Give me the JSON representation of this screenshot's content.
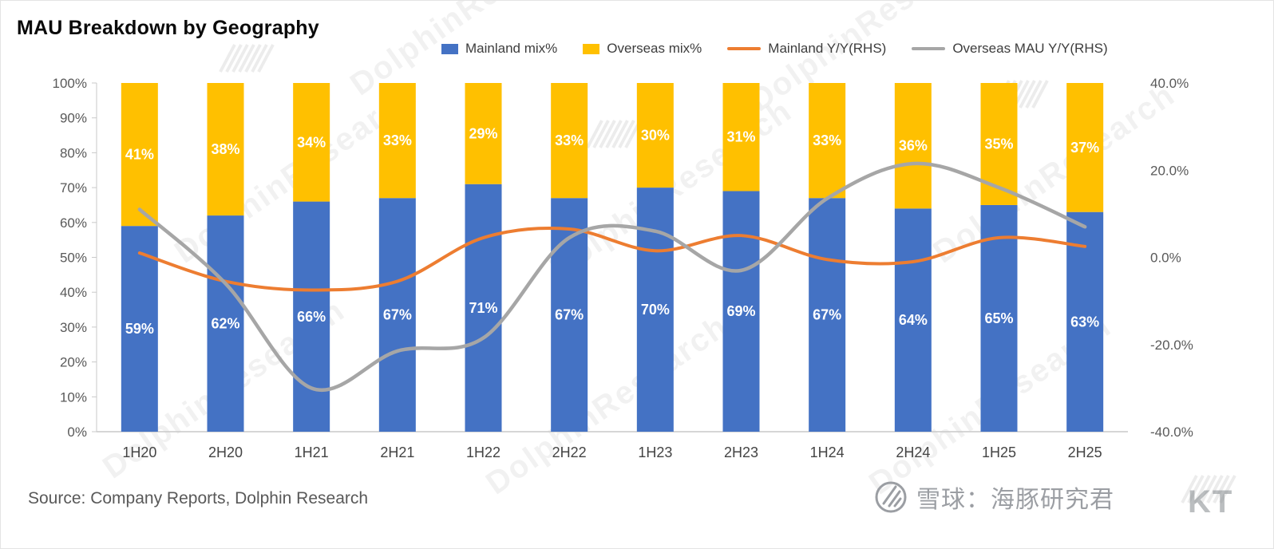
{
  "title": "MAU Breakdown by Geography",
  "source": "Source: Company Reports, Dolphin Research",
  "watermark": {
    "text": "DolphinResearch",
    "brand": "雪球：海豚研究君",
    "partial": "KT"
  },
  "colors": {
    "mainland": "#4472C4",
    "overseas": "#FFC000",
    "mainland_yy": "#ED7D31",
    "overseas_yy": "#A6A6A6",
    "axis_text": "#595959"
  },
  "legend": [
    {
      "label": "Mainland mix%",
      "swatch": "square",
      "color": "#4472C4"
    },
    {
      "label": "Overseas mix%",
      "swatch": "square",
      "color": "#FFC000"
    },
    {
      "label": "Mainland Y/Y(RHS)",
      "swatch": "line",
      "color": "#ED7D31"
    },
    {
      "label": "Overseas MAU Y/Y(RHS)",
      "swatch": "line",
      "color": "#A6A6A6"
    }
  ],
  "chart_data": {
    "type": "bar",
    "subtype": "stacked-100-percent-with-lines",
    "title": "MAU Breakdown by Geography",
    "categories": [
      "1H20",
      "2H20",
      "1H21",
      "2H21",
      "1H22",
      "2H22",
      "1H23",
      "2H23",
      "1H24",
      "2H24",
      "1H25",
      "2H25"
    ],
    "series": [
      {
        "name": "Mainland mix%",
        "type": "bar",
        "axis": "left",
        "color": "#4472C4",
        "values": [
          59,
          62,
          66,
          67,
          71,
          67,
          70,
          69,
          67,
          64,
          65,
          63
        ],
        "labels": [
          "59%",
          "62%",
          "66%",
          "67%",
          "71%",
          "67%",
          "70%",
          "69%",
          "67%",
          "64%",
          "65%",
          "63%"
        ]
      },
      {
        "name": "Overseas mix%",
        "type": "bar",
        "axis": "left",
        "color": "#FFC000",
        "values": [
          41,
          38,
          34,
          33,
          29,
          33,
          30,
          31,
          33,
          36,
          35,
          37
        ],
        "labels": [
          "41%",
          "38%",
          "34%",
          "33%",
          "29%",
          "33%",
          "30%",
          "31%",
          "33%",
          "36%",
          "35%",
          "37%"
        ]
      },
      {
        "name": "Mainland Y/Y(RHS)",
        "type": "line",
        "axis": "right",
        "color": "#ED7D31",
        "values": [
          1,
          -5.5,
          -7.5,
          -5.5,
          4.5,
          6.5,
          1.5,
          5,
          -0.5,
          -1,
          4.5,
          2.5
        ]
      },
      {
        "name": "Overseas MAU Y/Y(RHS)",
        "type": "line",
        "axis": "right",
        "color": "#A6A6A6",
        "values": [
          11,
          -6,
          -30,
          -21.5,
          -18.5,
          4.5,
          6,
          -3,
          13.5,
          21.5,
          16,
          7
        ]
      }
    ],
    "left_axis": {
      "min": 0,
      "max": 100,
      "step": 10,
      "tick_labels": [
        "0%",
        "10%",
        "20%",
        "30%",
        "40%",
        "50%",
        "60%",
        "70%",
        "80%",
        "90%",
        "100%"
      ]
    },
    "right_axis": {
      "min": -40,
      "max": 40,
      "step": 20,
      "tick_values": [
        -40,
        -20,
        0,
        20,
        40
      ],
      "tick_labels": [
        "-40.0%",
        "-20.0%",
        "0.0%",
        "20.0%",
        "40.0%"
      ]
    },
    "grid": false,
    "legend_position": "top"
  }
}
